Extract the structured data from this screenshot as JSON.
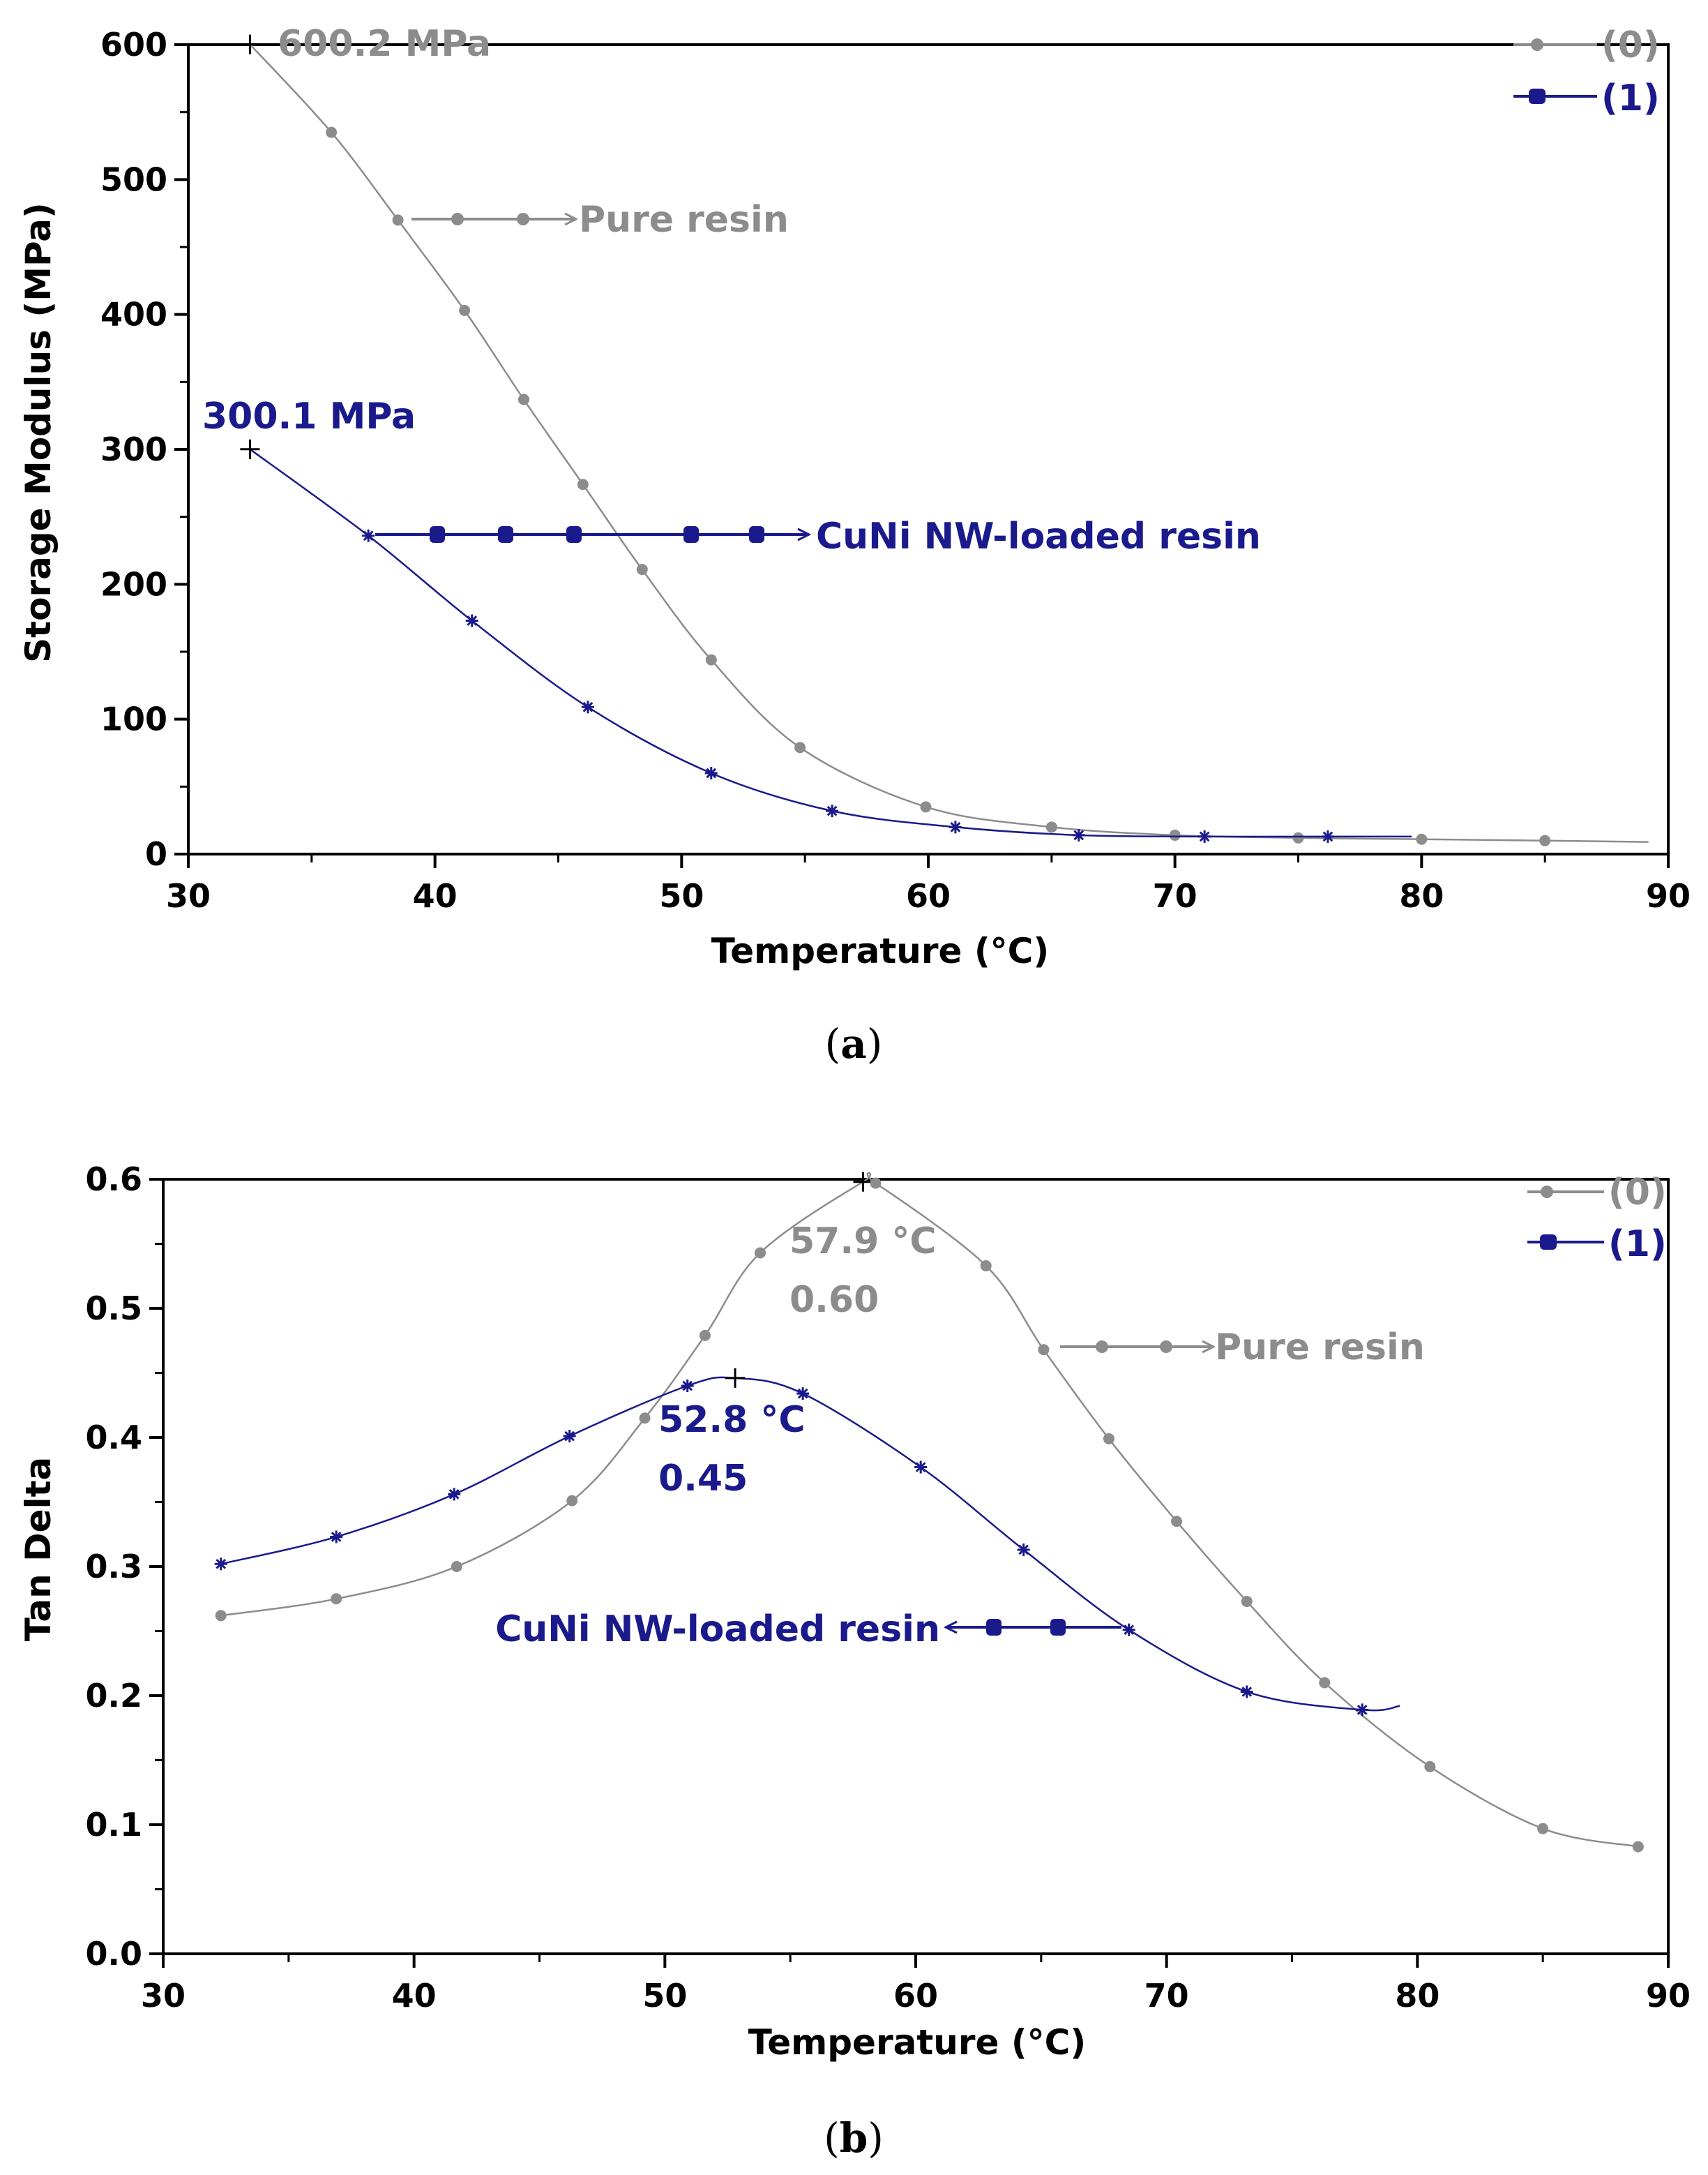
{
  "colors": {
    "series0": "#8c8c8c",
    "series1": "#1a1a8c",
    "axis": "#000000"
  },
  "chart_data": [
    {
      "type": "line",
      "panel_label": "a",
      "xlabel": "Temperature (°C)",
      "ylabel": "Storage Modulus (MPa)",
      "xlim": [
        30,
        90
      ],
      "ylim": [
        0,
        600
      ],
      "xticks": [
        30,
        40,
        50,
        60,
        70,
        80,
        90
      ],
      "yticks": [
        0,
        100,
        200,
        300,
        400,
        500,
        600
      ],
      "legend": [
        "(0)",
        "(1)"
      ],
      "series": [
        {
          "name": "(0)",
          "label": "Pure resin",
          "x": [
            32.5,
            35.8,
            38.5,
            41.2,
            43.6,
            46.0,
            48.4,
            51.2,
            54.8,
            59.9,
            65.0,
            70.0,
            75.0,
            80.0,
            85.0,
            89.2
          ],
          "y": [
            600.2,
            535,
            470,
            403,
            337,
            274,
            211,
            144,
            79,
            35,
            20,
            14,
            12,
            11,
            10,
            9
          ]
        },
        {
          "name": "(1)",
          "label": "CuNi NW-loaded resin",
          "x": [
            32.5,
            37.3,
            41.5,
            46.2,
            51.2,
            56.1,
            61.1,
            66.1,
            71.2,
            76.2,
            79.6
          ],
          "y": [
            300.1,
            236,
            173,
            109,
            60,
            32,
            20,
            14,
            13,
            13,
            13
          ]
        }
      ],
      "annotations": [
        {
          "text": "600.2 MPa",
          "series": "(0)",
          "x": 32.5,
          "y": 600.2
        },
        {
          "text": "300.1 MPa",
          "series": "(1)",
          "x": 32.5,
          "y": 300.1
        },
        {
          "text": "Pure resin",
          "series": "(0)",
          "x": 44,
          "y": 470
        },
        {
          "text": "CuNi NW-loaded resin",
          "series": "(1)",
          "x": 53.5,
          "y": 236
        }
      ]
    },
    {
      "type": "line",
      "panel_label": "b",
      "xlabel": "Temperature (°C)",
      "ylabel": "Tan Delta",
      "xlim": [
        30,
        90
      ],
      "ylim": [
        0,
        0.6
      ],
      "xticks": [
        30,
        40,
        50,
        60,
        70,
        80,
        90
      ],
      "yticks": [
        "0.0",
        "0.1",
        "0.2",
        "0.3",
        "0.4",
        "0.5",
        "0.6"
      ],
      "legend": [
        "(0)",
        "(1)"
      ],
      "series": [
        {
          "name": "(0)",
          "label": "Pure resin",
          "x": [
            32.3,
            36.9,
            41.7,
            46.3,
            49.2,
            51.6,
            53.8,
            57.9,
            58.4,
            62.8,
            65.1,
            67.7,
            70.4,
            73.2,
            76.3,
            80.5,
            85.0,
            88.8
          ],
          "y": [
            0.262,
            0.275,
            0.3,
            0.351,
            0.415,
            0.479,
            0.543,
            0.598,
            0.597,
            0.533,
            0.468,
            0.399,
            0.335,
            0.273,
            0.21,
            0.145,
            0.097,
            0.083
          ]
        },
        {
          "name": "(1)",
          "label": "CuNi NW-loaded resin",
          "x": [
            32.3,
            36.9,
            41.6,
            46.2,
            50.9,
            52.8,
            55.5,
            60.2,
            64.3,
            68.5,
            73.2,
            77.8,
            79.3
          ],
          "y": [
            0.302,
            0.323,
            0.356,
            0.401,
            0.44,
            0.446,
            0.434,
            0.377,
            0.313,
            0.251,
            0.203,
            0.189,
            0.192
          ]
        }
      ],
      "annotations": [
        {
          "text": "57.9 °C",
          "series": "(0)",
          "x": 57.9,
          "y": 0.598
        },
        {
          "text": "0.60",
          "series": "(0)",
          "x": 57.9,
          "y": 0.598
        },
        {
          "text": "52.8 °C",
          "series": "(1)",
          "x": 52.8,
          "y": 0.446
        },
        {
          "text": "0.45",
          "series": "(1)",
          "x": 52.8,
          "y": 0.446
        },
        {
          "text": "Pure resin",
          "series": "(0)",
          "x": 68.5,
          "y": 0.468
        },
        {
          "text": "CuNi NW-loaded resin",
          "series": "(1)",
          "x": 63,
          "y": 0.251
        }
      ]
    }
  ]
}
